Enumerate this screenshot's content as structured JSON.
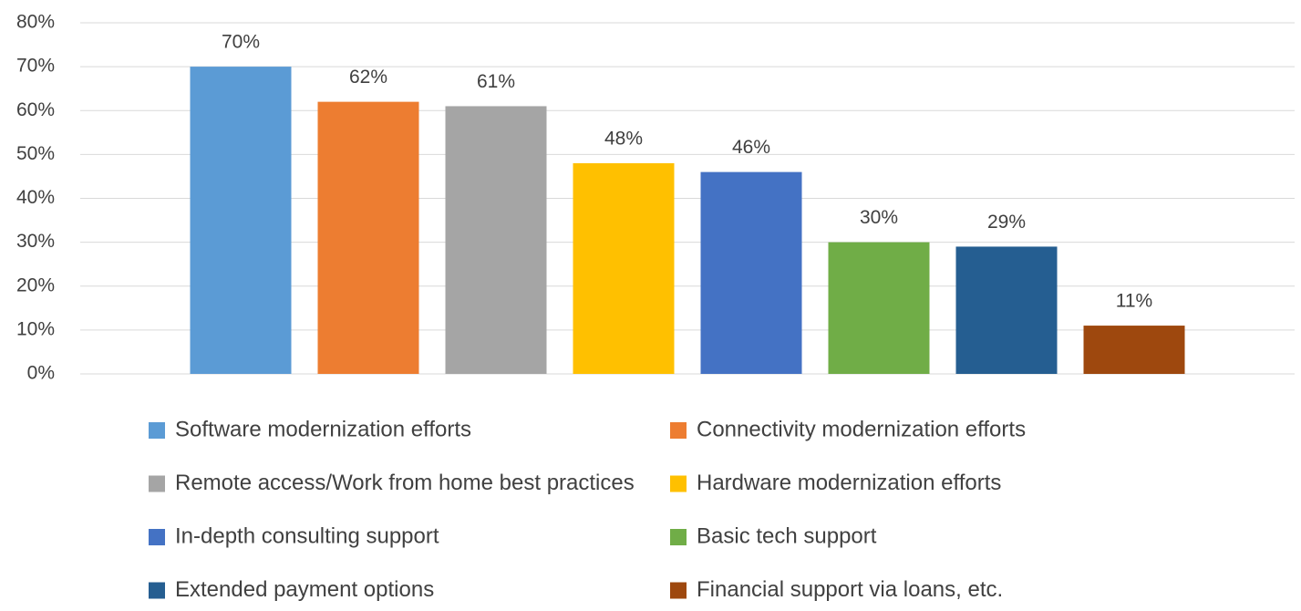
{
  "chart_data": {
    "type": "bar",
    "series": [
      {
        "name": "Software modernization efforts",
        "color": "#5b9bd5",
        "values": [
          70
        ],
        "value_labels": [
          "70%"
        ]
      },
      {
        "name": "Connectivity modernization efforts",
        "color": "#ed7d31",
        "values": [
          62
        ],
        "value_labels": [
          "62%"
        ]
      },
      {
        "name": "Remote access/Work from home best practices",
        "color": "#a5a5a5",
        "values": [
          61
        ],
        "value_labels": [
          "61%"
        ]
      },
      {
        "name": "Hardware modernization efforts",
        "color": "#ffc000",
        "values": [
          48
        ],
        "value_labels": [
          "48%"
        ]
      },
      {
        "name": "In-depth consulting support",
        "color": "#4472c4",
        "values": [
          46
        ],
        "value_labels": [
          "46%"
        ]
      },
      {
        "name": "Basic tech support",
        "color": "#70ad47",
        "values": [
          30
        ],
        "value_labels": [
          "30%"
        ]
      },
      {
        "name": "Extended payment options",
        "color": "#255e91",
        "values": [
          29
        ],
        "value_labels": [
          "29%"
        ]
      },
      {
        "name": "Financial support via loans, etc.",
        "color": "#9e480e",
        "values": [
          11
        ],
        "value_labels": [
          "11%"
        ]
      }
    ],
    "ylim": [
      0,
      80
    ],
    "yticks": [
      {
        "value": 0,
        "label": "0%"
      },
      {
        "value": 10,
        "label": "10%"
      },
      {
        "value": 20,
        "label": "20%"
      },
      {
        "value": 30,
        "label": "30%"
      },
      {
        "value": 40,
        "label": "40%"
      },
      {
        "value": 50,
        "label": "50%"
      },
      {
        "value": 60,
        "label": "60%"
      },
      {
        "value": 70,
        "label": "70%"
      },
      {
        "value": 80,
        "label": "80%"
      }
    ],
    "grid": true,
    "legend": "bottom"
  }
}
